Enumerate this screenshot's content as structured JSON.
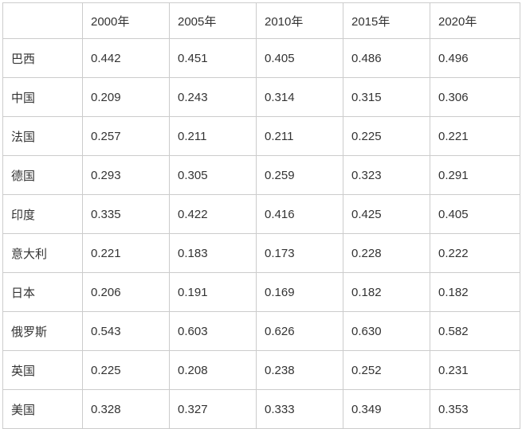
{
  "table": {
    "columns": [
      "",
      "2000年",
      "2005年",
      "2010年",
      "2015年",
      "2020年"
    ],
    "rows": [
      {
        "label": "巴西",
        "values": [
          "0.442",
          "0.451",
          "0.405",
          "0.486",
          "0.496"
        ]
      },
      {
        "label": "中国",
        "values": [
          "0.209",
          "0.243",
          "0.314",
          "0.315",
          "0.306"
        ]
      },
      {
        "label": "法国",
        "values": [
          "0.257",
          "0.211",
          "0.211",
          "0.225",
          "0.221"
        ]
      },
      {
        "label": "德国",
        "values": [
          "0.293",
          "0.305",
          "0.259",
          "0.323",
          "0.291"
        ]
      },
      {
        "label": "印度",
        "values": [
          "0.335",
          "0.422",
          "0.416",
          "0.425",
          "0.405"
        ]
      },
      {
        "label": "意大利",
        "values": [
          "0.221",
          "0.183",
          "0.173",
          "0.228",
          "0.222"
        ]
      },
      {
        "label": "日本",
        "values": [
          "0.206",
          "0.191",
          "0.169",
          "0.182",
          "0.182"
        ]
      },
      {
        "label": "俄罗斯",
        "values": [
          "0.543",
          "0.603",
          "0.626",
          "0.630",
          "0.582"
        ]
      },
      {
        "label": "英国",
        "values": [
          "0.225",
          "0.208",
          "0.238",
          "0.252",
          "0.231"
        ]
      },
      {
        "label": "美国",
        "values": [
          "0.328",
          "0.327",
          "0.333",
          "0.349",
          "0.353"
        ]
      }
    ]
  },
  "chart_data": {
    "type": "table",
    "categories": [
      "2000年",
      "2005年",
      "2010年",
      "2015年",
      "2020年"
    ],
    "series": [
      {
        "name": "巴西",
        "values": [
          0.442,
          0.451,
          0.405,
          0.486,
          0.496
        ]
      },
      {
        "name": "中国",
        "values": [
          0.209,
          0.243,
          0.314,
          0.315,
          0.306
        ]
      },
      {
        "name": "法国",
        "values": [
          0.257,
          0.211,
          0.211,
          0.225,
          0.221
        ]
      },
      {
        "name": "德国",
        "values": [
          0.293,
          0.305,
          0.259,
          0.323,
          0.291
        ]
      },
      {
        "name": "印度",
        "values": [
          0.335,
          0.422,
          0.416,
          0.425,
          0.405
        ]
      },
      {
        "name": "意大利",
        "values": [
          0.221,
          0.183,
          0.173,
          0.228,
          0.222
        ]
      },
      {
        "name": "日本",
        "values": [
          0.206,
          0.191,
          0.169,
          0.182,
          0.182
        ]
      },
      {
        "name": "俄罗斯",
        "values": [
          0.543,
          0.603,
          0.626,
          0.63,
          0.582
        ]
      },
      {
        "name": "英国",
        "values": [
          0.225,
          0.208,
          0.238,
          0.252,
          0.231
        ]
      },
      {
        "name": "美国",
        "values": [
          0.328,
          0.327,
          0.333,
          0.349,
          0.353
        ]
      }
    ],
    "title": "",
    "xlabel": "",
    "ylabel": "",
    "legend_position": "none",
    "grid": true
  },
  "colors": {
    "border": "#cccccc",
    "text": "#333333",
    "background": "#ffffff"
  }
}
